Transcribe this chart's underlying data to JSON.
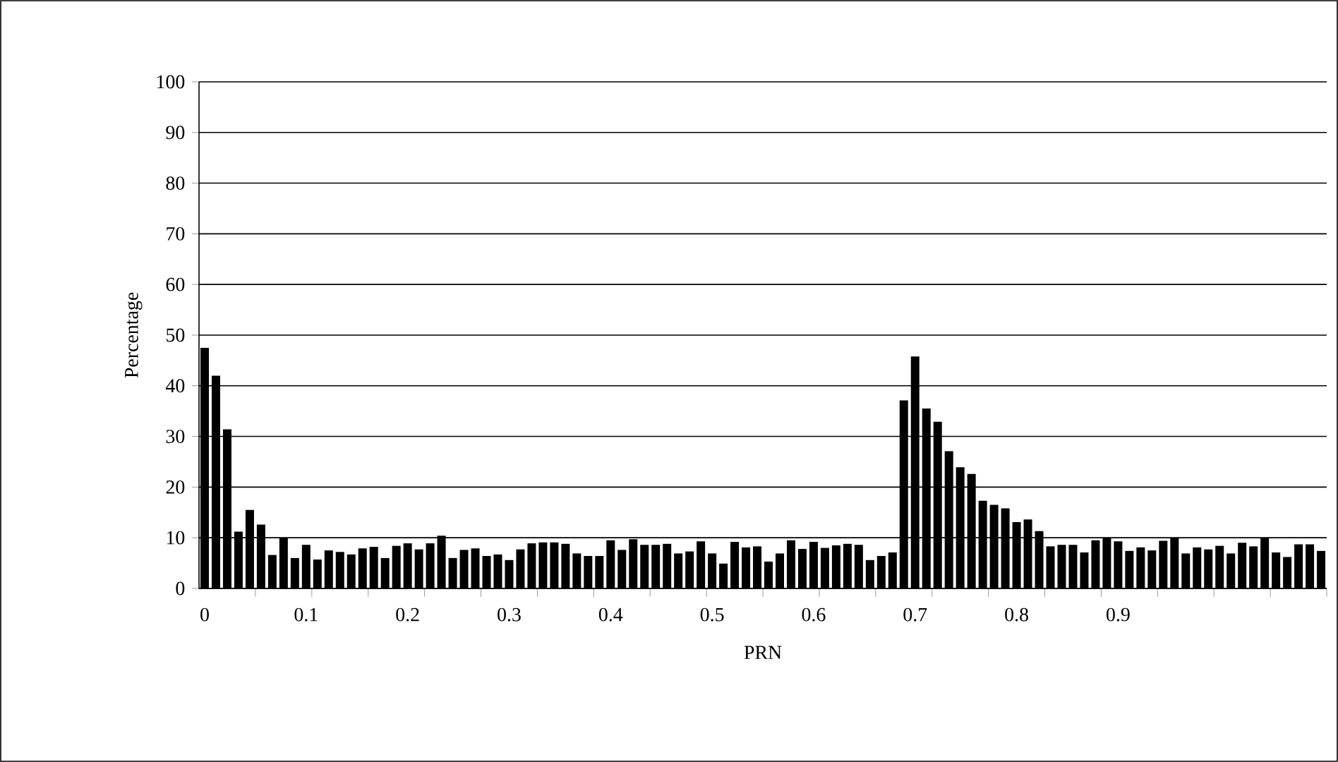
{
  "chart_data": {
    "type": "bar",
    "xlabel": "PRN",
    "ylabel": "Percentage",
    "categories": [
      "0",
      null,
      null,
      null,
      null,
      null,
      null,
      null,
      null,
      "0.1",
      null,
      null,
      null,
      null,
      null,
      null,
      null,
      null,
      "0.2",
      null,
      null,
      null,
      null,
      null,
      null,
      null,
      null,
      "0.3",
      null,
      null,
      null,
      null,
      null,
      null,
      null,
      null,
      "0.4",
      null,
      null,
      null,
      null,
      null,
      null,
      null,
      null,
      "0.5",
      null,
      null,
      null,
      null,
      null,
      null,
      null,
      null,
      "0.6",
      null,
      null,
      null,
      null,
      null,
      null,
      null,
      null,
      "0.7",
      null,
      null,
      null,
      null,
      null,
      null,
      null,
      null,
      "0.8",
      null,
      null,
      null,
      null,
      null,
      null,
      null,
      null,
      "0.9",
      null,
      null,
      null,
      null,
      null,
      null,
      null,
      null,
      null,
      null,
      null,
      null,
      null,
      null,
      null,
      null,
      null,
      null
    ],
    "values": [
      47.5,
      42,
      31.4,
      11.2,
      15.5,
      12.6,
      6.6,
      9.9,
      6.0,
      8.6,
      5.7,
      7.5,
      7.2,
      6.7,
      7.9,
      8.2,
      6.0,
      8.4,
      8.9,
      7.7,
      8.9,
      10.4,
      6.0,
      7.6,
      7.9,
      6.4,
      6.7,
      5.6,
      7.7,
      8.9,
      9.1,
      9.1,
      8.8,
      6.9,
      6.4,
      6.4,
      9.5,
      7.6,
      9.7,
      8.6,
      8.6,
      8.8,
      6.9,
      7.3,
      9.3,
      6.9,
      4.9,
      9.2,
      8.1,
      8.3,
      5.3,
      6.9,
      9.5,
      7.8,
      9.2,
      8.0,
      8.5,
      8.8,
      8.6,
      5.6,
      6.4,
      7.1,
      37.1,
      45.8,
      35.5,
      32.9,
      27.1,
      23.9,
      22.6,
      17.3,
      16.5,
      15.8,
      13.1,
      13.6,
      11.3,
      8.3,
      8.6,
      8.6,
      7.1,
      9.5,
      10.0,
      9.3,
      7.4,
      8.1,
      7.5,
      9.4,
      10.0,
      6.9,
      8.1,
      7.7,
      8.4,
      6.9,
      9.0,
      8.3,
      10.0,
      7.1,
      6.2,
      8.7,
      8.7,
      7.4
    ],
    "color": "#000000",
    "ylim": [
      0,
      100
    ],
    "yticks": [
      0,
      10,
      20,
      30,
      40,
      50,
      60,
      70,
      80,
      90,
      100
    ],
    "grid": "y"
  }
}
